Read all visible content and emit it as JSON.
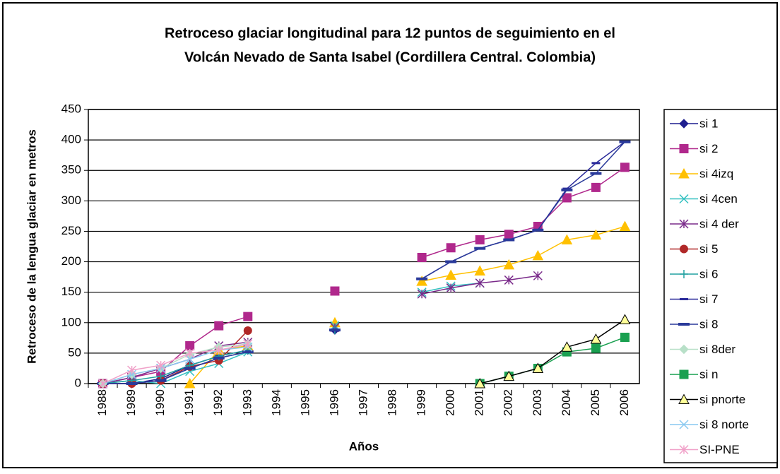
{
  "chart_data": {
    "type": "line",
    "title": [
      "Retroceso glaciar longitudinal para 12 puntos de seguimiento en el",
      "Volcán Nevado de Santa Isabel (Cordillera Central. Colombia)"
    ],
    "xlabel": "Años",
    "ylabel": "Retroceso de la lengua glaciar en metros",
    "categories": [
      "1988",
      "1989",
      "1990",
      "1991",
      "1992",
      "1993",
      "1994",
      "1995",
      "1996",
      "1997",
      "1998",
      "1999",
      "2000",
      "2001",
      "2002",
      "2003",
      "2004",
      "2005",
      "2006"
    ],
    "ylim": [
      0,
      450
    ],
    "yticks": [
      0,
      50,
      100,
      150,
      200,
      250,
      300,
      350,
      400,
      450
    ],
    "grid": true,
    "legend": "right",
    "series": [
      {
        "name": "si 1",
        "color": "#1f1f8f",
        "marker": "diamond",
        "values": [
          0,
          0,
          8,
          30,
          45,
          55,
          null,
          null,
          88,
          null,
          null,
          null,
          null,
          null,
          null,
          null,
          null,
          null,
          null
        ]
      },
      {
        "name": "si 2",
        "color": "#b0288c",
        "marker": "square",
        "values": [
          0,
          10,
          20,
          62,
          95,
          110,
          null,
          null,
          152,
          null,
          null,
          207,
          223,
          236,
          245,
          258,
          305,
          322,
          355
        ]
      },
      {
        "name": "si 4izq",
        "color": "#ffc000",
        "marker": "triangle",
        "values": [
          null,
          null,
          null,
          0,
          55,
          62,
          null,
          null,
          100,
          null,
          null,
          168,
          178,
          185,
          195,
          210,
          236,
          244,
          258
        ]
      },
      {
        "name": "si 4cen",
        "color": "#33c0c0",
        "marker": "x",
        "values": [
          0,
          5,
          0,
          20,
          33,
          52,
          null,
          null,
          95,
          null,
          null,
          150,
          160,
          165,
          null,
          null,
          null,
          null,
          null
        ]
      },
      {
        "name": "si 4 der",
        "color": "#7a2a8a",
        "marker": "star",
        "values": [
          0,
          10,
          25,
          40,
          62,
          68,
          null,
          null,
          92,
          null,
          null,
          147,
          157,
          165,
          170,
          177,
          null,
          null,
          null
        ]
      },
      {
        "name": "si 5",
        "color": "#b02828",
        "marker": "circle",
        "values": [
          0,
          0,
          5,
          28,
          38,
          87,
          null,
          null,
          null,
          null,
          null,
          null,
          null,
          null,
          null,
          null,
          null,
          null,
          null
        ]
      },
      {
        "name": "si 6",
        "color": "#20a0a0",
        "marker": "plus",
        "values": [
          0,
          5,
          12,
          30,
          45,
          55,
          null,
          null,
          88,
          null,
          null,
          null,
          null,
          null,
          null,
          null,
          null,
          null,
          null
        ]
      },
      {
        "name": "si 7",
        "color": "#2a2a9a",
        "marker": "dash",
        "values": [
          0,
          0,
          5,
          25,
          42,
          52,
          null,
          null,
          88,
          null,
          null,
          172,
          200,
          222,
          236,
          252,
          320,
          362,
          397
        ]
      },
      {
        "name": "si 8",
        "color": "#2a3a9a",
        "marker": "longdash",
        "values": [
          0,
          0,
          5,
          25,
          42,
          52,
          null,
          null,
          88,
          null,
          null,
          172,
          200,
          222,
          236,
          252,
          318,
          345,
          397
        ]
      },
      {
        "name": "si 8der",
        "color": "#b8e0c8",
        "marker": "diamond",
        "values": [
          0,
          15,
          25,
          48,
          60,
          65,
          null,
          null,
          null,
          null,
          null,
          null,
          null,
          null,
          null,
          null,
          null,
          null,
          null
        ]
      },
      {
        "name": "si n",
        "color": "#1aa050",
        "marker": "square",
        "values": [
          null,
          null,
          null,
          null,
          null,
          null,
          null,
          null,
          null,
          null,
          null,
          null,
          null,
          0,
          12,
          25,
          52,
          58,
          76
        ]
      },
      {
        "name": "si pnorte",
        "color": "#000000",
        "marker": "opentriangle",
        "values": [
          null,
          null,
          null,
          null,
          null,
          null,
          null,
          null,
          null,
          null,
          null,
          null,
          null,
          0,
          12,
          25,
          60,
          73,
          105
        ]
      },
      {
        "name": "si 8 norte",
        "color": "#88c8f0",
        "marker": "x",
        "values": [
          0,
          15,
          25,
          40,
          55,
          60,
          null,
          null,
          null,
          null,
          null,
          null,
          null,
          null,
          null,
          null,
          null,
          null,
          null
        ]
      },
      {
        "name": "SI-PNE",
        "color": "#f0a0c8",
        "marker": "star",
        "values": [
          0,
          22,
          30,
          50,
          55,
          65,
          null,
          null,
          null,
          null,
          null,
          null,
          null,
          null,
          null,
          null,
          null,
          null,
          null
        ]
      }
    ]
  }
}
